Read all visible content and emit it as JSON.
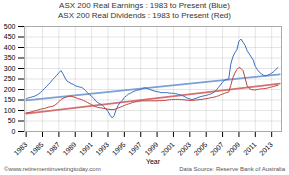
{
  "chart_data": {
    "type": "line",
    "title": "ASX 200 Real Earnings : 1983 to Present (Blue)\nASX 200 Real Dividends : 1983 to Present (Red)",
    "xlabel": "Year",
    "annotations": [
      "©www.retirementinvestingtoday.com",
      "Data Source: Reserve Bank of Australia"
    ],
    "x": [
      1983,
      1983.25,
      1983.5,
      1983.75,
      1984,
      1984.25,
      1984.5,
      1984.75,
      1985,
      1985.25,
      1985.5,
      1985.75,
      1986,
      1986.25,
      1986.5,
      1986.75,
      1987,
      1987.25,
      1987.5,
      1987.75,
      1988,
      1988.25,
      1988.5,
      1988.75,
      1989,
      1989.25,
      1989.5,
      1989.75,
      1990,
      1990.25,
      1990.5,
      1990.75,
      1991,
      1991.25,
      1991.5,
      1991.75,
      1992,
      1992.25,
      1992.5,
      1992.75,
      1993,
      1993.25,
      1993.5,
      1993.75,
      1994,
      1994.25,
      1994.5,
      1994.75,
      1995,
      1995.25,
      1995.5,
      1995.75,
      1996,
      1996.25,
      1996.5,
      1996.75,
      1997,
      1997.25,
      1997.5,
      1997.75,
      1998,
      1998.25,
      1998.5,
      1998.75,
      1999,
      1999.25,
      1999.5,
      1999.75,
      2000,
      2000.25,
      2000.5,
      2000.75,
      2001,
      2001.25,
      2001.5,
      2001.75,
      2002,
      2002.25,
      2002.5,
      2002.75,
      2003,
      2003.25,
      2003.5,
      2003.75,
      2004,
      2004.25,
      2004.5,
      2004.75,
      2005,
      2005.25,
      2005.5,
      2005.75,
      2006,
      2006.25,
      2006.5,
      2006.75,
      2007,
      2007.25,
      2007.5,
      2007.75,
      2008,
      2008.25,
      2008.5,
      2008.75,
      2009,
      2009.25,
      2009.5,
      2009.75,
      2010,
      2010.25,
      2010.5,
      2010.75,
      2011,
      2011.25,
      2011.5,
      2011.75,
      2012,
      2012.25,
      2012.5,
      2012.75,
      2013,
      2013.25,
      2013.5,
      2013.75
    ],
    "series": [
      {
        "color": "#7AA0D4",
        "x": [
          1983,
          2014
        ],
        "values": [
          148,
          272
        ]
      },
      {
        "color": "#D47070",
        "x": [
          1983,
          2014
        ],
        "values": [
          85,
          228
        ]
      },
      {
        "color": "#3B6CC4",
        "values": [
          155,
          160,
          162,
          165,
          168,
          172,
          178,
          185,
          195,
          205,
          215,
          225,
          235,
          248,
          258,
          268,
          280,
          290,
          275,
          255,
          240,
          235,
          228,
          225,
          218,
          215,
          212,
          210,
          205,
          195,
          185,
          175,
          168,
          158,
          145,
          138,
          132,
          128,
          118,
          108,
          95,
          78,
          65,
          75,
          105,
          125,
          138,
          148,
          162,
          170,
          178,
          182,
          188,
          192,
          196,
          198,
          200,
          205,
          208,
          205,
          202,
          198,
          195,
          192,
          190,
          188,
          185,
          185,
          185,
          185,
          183,
          182,
          182,
          180,
          178,
          175,
          172,
          168,
          163,
          158,
          155,
          152,
          155,
          158,
          162,
          165,
          168,
          170,
          172,
          175,
          178,
          182,
          188,
          198,
          210,
          222,
          235,
          245,
          248,
          250,
          320,
          355,
          375,
          390,
          430,
          440,
          425,
          410,
          385,
          370,
          355,
          340,
          310,
          295,
          282,
          275,
          268,
          265,
          268,
          272,
          278,
          285,
          295,
          305
        ]
      },
      {
        "color": "#C0403D",
        "values": [
          88,
          90,
          92,
          95,
          98,
          100,
          103,
          106,
          108,
          110,
          113,
          116,
          118,
          120,
          125,
          132,
          142,
          152,
          158,
          162,
          165,
          168,
          168,
          165,
          162,
          158,
          155,
          152,
          148,
          143,
          138,
          133,
          128,
          122,
          118,
          115,
          113,
          112,
          110,
          108,
          106,
          105,
          104,
          105,
          108,
          112,
          116,
          120,
          124,
          128,
          131,
          134,
          138,
          140,
          142,
          144,
          145,
          146,
          146,
          146,
          146,
          146,
          146,
          146,
          146,
          147,
          147,
          148,
          148,
          150,
          151,
          152,
          152,
          153,
          153,
          152,
          152,
          151,
          150,
          149,
          148,
          148,
          149,
          150,
          151,
          152,
          153,
          155,
          156,
          158,
          160,
          162,
          164,
          167,
          170,
          175,
          178,
          182,
          185,
          188,
          220,
          255,
          278,
          295,
          305,
          300,
          290,
          255,
          218,
          205,
          200,
          198,
          198,
          200,
          202,
          203,
          204,
          205,
          207,
          210,
          212,
          215,
          218,
          220
        ]
      }
    ],
    "xlim": [
      1982.8,
      2014.2
    ],
    "xticks": [
      1983,
      1985,
      1987,
      1989,
      1991,
      1993,
      1995,
      1997,
      1999,
      2001,
      2003,
      2005,
      2007,
      2009,
      2011,
      2013
    ],
    "ylim": [
      0,
      500
    ],
    "yticks": [
      0,
      50,
      100,
      150,
      200,
      250,
      300,
      350,
      400,
      450,
      500
    ],
    "grid": true
  }
}
